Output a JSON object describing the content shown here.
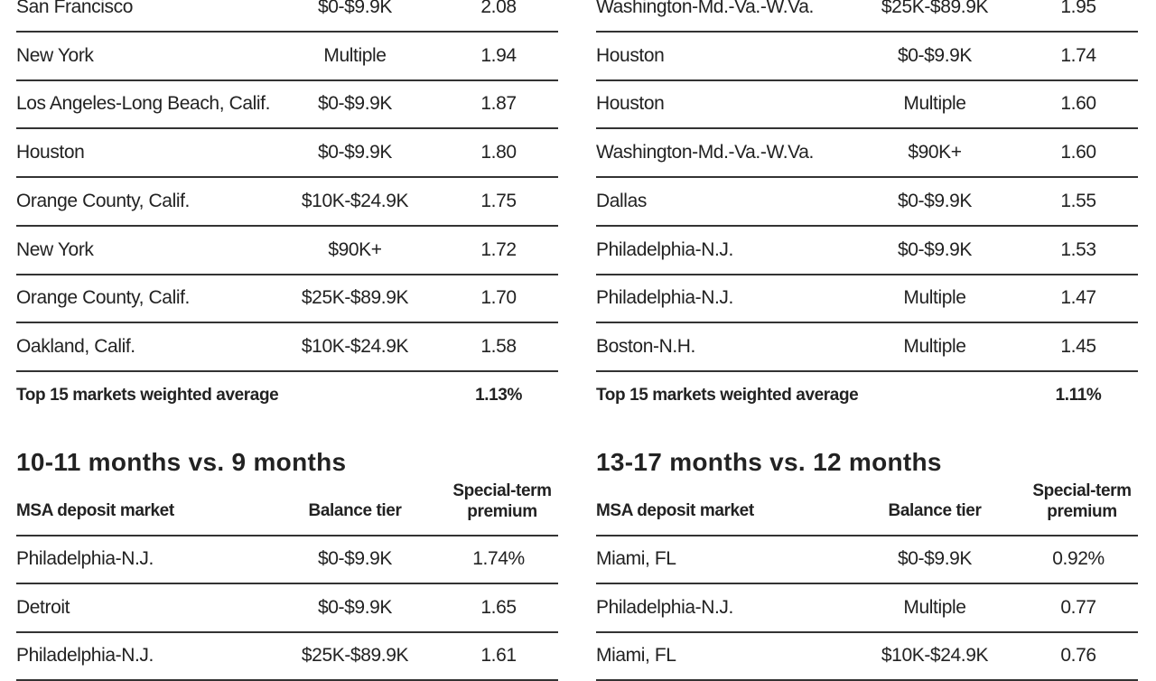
{
  "top_tables": [
    {
      "rows": [
        [
          "San Francisco",
          "$0-$9.9K",
          "2.08"
        ],
        [
          "New York",
          "Multiple",
          "1.94"
        ],
        [
          "Los Angeles-Long Beach, Calif.",
          "$0-$9.9K",
          "1.87"
        ],
        [
          "Houston",
          "$0-$9.9K",
          "1.80"
        ],
        [
          "Orange County, Calif.",
          "$10K-$24.9K",
          "1.75"
        ],
        [
          "New York",
          "$90K+",
          "1.72"
        ],
        [
          "Orange County, Calif.",
          "$25K-$89.9K",
          "1.70"
        ],
        [
          "Oakland, Calif.",
          "$10K-$24.9K",
          "1.58"
        ]
      ],
      "summary": [
        "Top 15 markets weighted average",
        "1.13%"
      ]
    },
    {
      "rows": [
        [
          "Washington-Md.-Va.-W.Va.",
          "$25K-$89.9K",
          "1.95"
        ],
        [
          "Houston",
          "$0-$9.9K",
          "1.74"
        ],
        [
          "Houston",
          "Multiple",
          "1.60"
        ],
        [
          "Washington-Md.-Va.-W.Va.",
          "$90K+",
          "1.60"
        ],
        [
          "Dallas",
          "$0-$9.9K",
          "1.55"
        ],
        [
          "Philadelphia-N.J.",
          "$0-$9.9K",
          "1.53"
        ],
        [
          "Philadelphia-N.J.",
          "Multiple",
          "1.47"
        ],
        [
          "Boston-N.H.",
          "Multiple",
          "1.45"
        ]
      ],
      "summary": [
        "Top 15 markets weighted average",
        "1.11%"
      ]
    }
  ],
  "bottom_tables": [
    {
      "title": "10-11 months vs. 9 months",
      "header": [
        "MSA deposit market",
        "Balance tier",
        "Special-term premium"
      ],
      "rows": [
        [
          "Philadelphia-N.J.",
          "$0-$9.9K",
          "1.74%"
        ],
        [
          "Detroit",
          "$0-$9.9K",
          "1.65"
        ],
        [
          "Philadelphia-N.J.",
          "$25K-$89.9K",
          "1.61"
        ]
      ]
    },
    {
      "title": "13-17 months vs. 12 months",
      "header": [
        "MSA deposit market",
        "Balance tier",
        "Special-term premium"
      ],
      "rows": [
        [
          "Miami, FL",
          "$0-$9.9K",
          "0.92%"
        ],
        [
          "Philadelphia-N.J.",
          "Multiple",
          "0.77"
        ],
        [
          "Miami, FL",
          "$10K-$24.9K",
          "0.76"
        ]
      ]
    }
  ]
}
